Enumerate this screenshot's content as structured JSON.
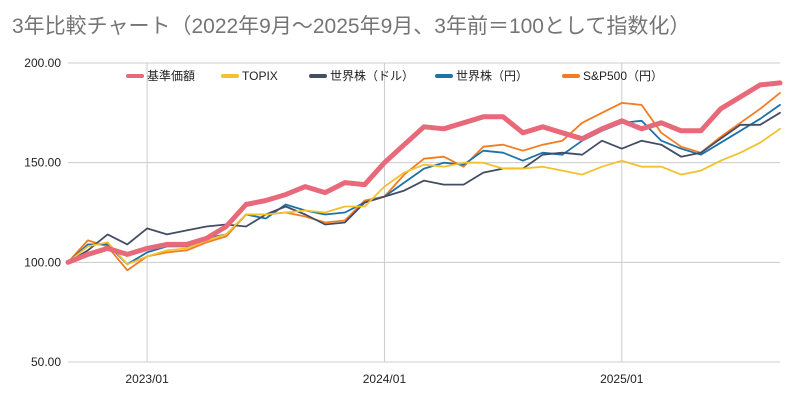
{
  "chart_data": {
    "type": "line",
    "title": "3年比較チャート（2022年9月～2025年9月、3年前＝100として指数化）",
    "xlabel": "",
    "ylabel": "",
    "ylim": [
      50,
      200
    ],
    "yticks": [
      "200.00",
      "150.00",
      "100.00",
      "50.00"
    ],
    "ytick_values": [
      200,
      150,
      100,
      50
    ],
    "xticks": [
      "2023/01",
      "2024/01",
      "2025/01"
    ],
    "xtick_values": [
      "2023-01",
      "2024-01",
      "2025-01"
    ],
    "x": [
      "2022-09",
      "2022-10",
      "2022-11",
      "2022-12",
      "2023-01",
      "2023-02",
      "2023-03",
      "2023-04",
      "2023-05",
      "2023-06",
      "2023-07",
      "2023-08",
      "2023-09",
      "2023-10",
      "2023-11",
      "2023-12",
      "2024-01",
      "2024-02",
      "2024-03",
      "2024-04",
      "2024-05",
      "2024-06",
      "2024-07",
      "2024-08",
      "2024-09",
      "2024-10",
      "2024-11",
      "2024-12",
      "2025-01",
      "2025-02",
      "2025-03",
      "2025-04",
      "2025-05",
      "2025-06",
      "2025-07",
      "2025-08",
      "2025-09"
    ],
    "grid": true,
    "legend_position": "top",
    "series": [
      {
        "name": "基準価額",
        "color": "#e8697a",
        "width": 5,
        "values": [
          100,
          104,
          107,
          104,
          107,
          109,
          109,
          112,
          118,
          129,
          131,
          134,
          138,
          135,
          140,
          139,
          150,
          159,
          168,
          167,
          170,
          173,
          173,
          165,
          168,
          165,
          162,
          167,
          171,
          167,
          170,
          166,
          166,
          177,
          183,
          189,
          190
        ]
      },
      {
        "name": "TOPIX",
        "color": "#f2c12e",
        "width": 1.8,
        "values": [
          100,
          108,
          110,
          99,
          103,
          106,
          107,
          111,
          114,
          124,
          124,
          125,
          126,
          125,
          128,
          128,
          138,
          145,
          149,
          148,
          150,
          150,
          147,
          147,
          148,
          146,
          144,
          148,
          151,
          148,
          148,
          144,
          146,
          151,
          155,
          160,
          167
        ]
      },
      {
        "name": "世界株（ドル）",
        "color": "#454d66",
        "width": 1.8,
        "values": [
          100,
          106,
          114,
          109,
          117,
          114,
          116,
          118,
          119,
          118,
          124,
          128,
          124,
          119,
          120,
          130,
          133,
          136,
          141,
          139,
          139,
          145,
          147,
          147,
          154,
          155,
          154,
          161,
          157,
          161,
          159,
          153,
          155,
          162,
          169,
          169,
          175
        ]
      },
      {
        "name": "世界株（円）",
        "color": "#1d72a8",
        "width": 1.8,
        "values": [
          100,
          109,
          109,
          99,
          105,
          108,
          108,
          112,
          114,
          124,
          122,
          129,
          126,
          124,
          125,
          130,
          133,
          140,
          147,
          150,
          149,
          156,
          155,
          151,
          155,
          154,
          161,
          166,
          170,
          171,
          161,
          157,
          154,
          160,
          166,
          172,
          179
        ]
      },
      {
        "name": "S&P500（円）",
        "color": "#f47b20",
        "width": 1.8,
        "values": [
          100,
          111,
          108,
          96,
          103,
          105,
          106,
          110,
          113,
          124,
          124,
          125,
          123,
          120,
          121,
          131,
          133,
          144,
          152,
          153,
          148,
          158,
          159,
          156,
          159,
          161,
          170,
          175,
          180,
          179,
          165,
          158,
          155,
          163,
          170,
          177,
          185
        ]
      }
    ]
  }
}
